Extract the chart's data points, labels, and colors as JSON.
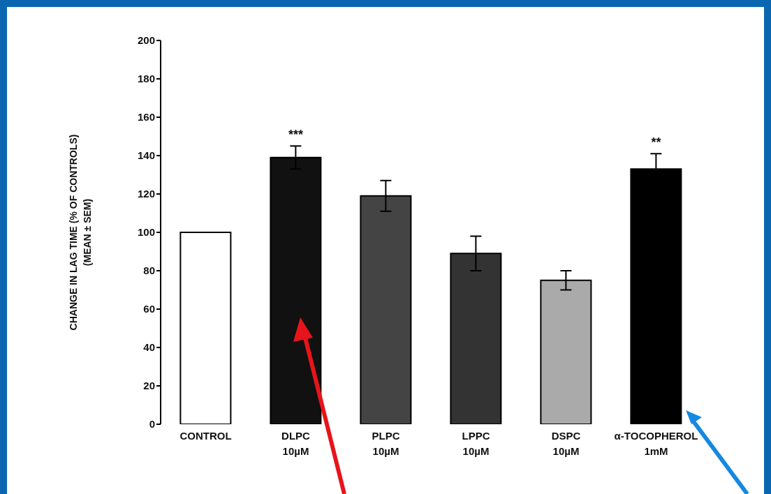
{
  "chart_data": {
    "type": "bar",
    "ylabel": "CHANGE IN LAG TIME (% OF CONTROLS)\n(MEAN ± SEM)",
    "categories": [
      "CONTROL",
      "DLPC\n10µM",
      "PLPC\n10µM",
      "LPPC\n10µM",
      "DSPC\n10µM",
      "α-TOCOPHEROL\n1mM"
    ],
    "values": [
      100,
      139,
      119,
      89,
      75,
      133
    ],
    "errors": [
      null,
      6,
      8,
      9,
      5,
      8
    ],
    "colors": [
      "#ffffff",
      "#111111",
      "#444444",
      "#333333",
      "#aaaaaa",
      "#000000"
    ],
    "ylim": [
      0,
      200
    ],
    "yticks": [
      0,
      20,
      40,
      60,
      80,
      100,
      120,
      140,
      160,
      180,
      200
    ],
    "grid": false,
    "annotations": [
      {
        "text": "***",
        "x": "DLPC\n10µM",
        "y": 145
      },
      {
        "text": "**",
        "x": "α-TOCOPHEROL\n1mM",
        "y": 141
      }
    ]
  }
}
